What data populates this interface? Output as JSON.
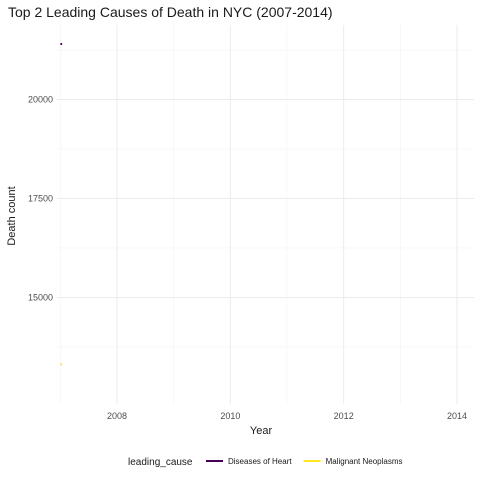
{
  "chart_data": {
    "type": "line",
    "title": "Top 2 Leading Causes of Death in NYC (2007-2014)",
    "xlabel": "Year",
    "ylabel": "Death count",
    "xlim": [
      2006.94,
      2014.3
    ],
    "ylim": [
      12310,
      21880
    ],
    "x_ticks": [
      2008,
      2010,
      2012,
      2014
    ],
    "y_ticks": [
      15000,
      17500,
      20000
    ],
    "grid": true,
    "legend": {
      "title": "leading_cause",
      "position": "bottom"
    },
    "series": [
      {
        "name": "Diseases of Heart",
        "color": "#440154",
        "x": [
          2007,
          2007.03
        ],
        "y": [
          21400,
          21400
        ]
      },
      {
        "name": "Malignant Neoplasms",
        "color": "#fde725",
        "x": [
          2007,
          2007.03
        ],
        "y": [
          13310,
          13310
        ]
      }
    ]
  }
}
